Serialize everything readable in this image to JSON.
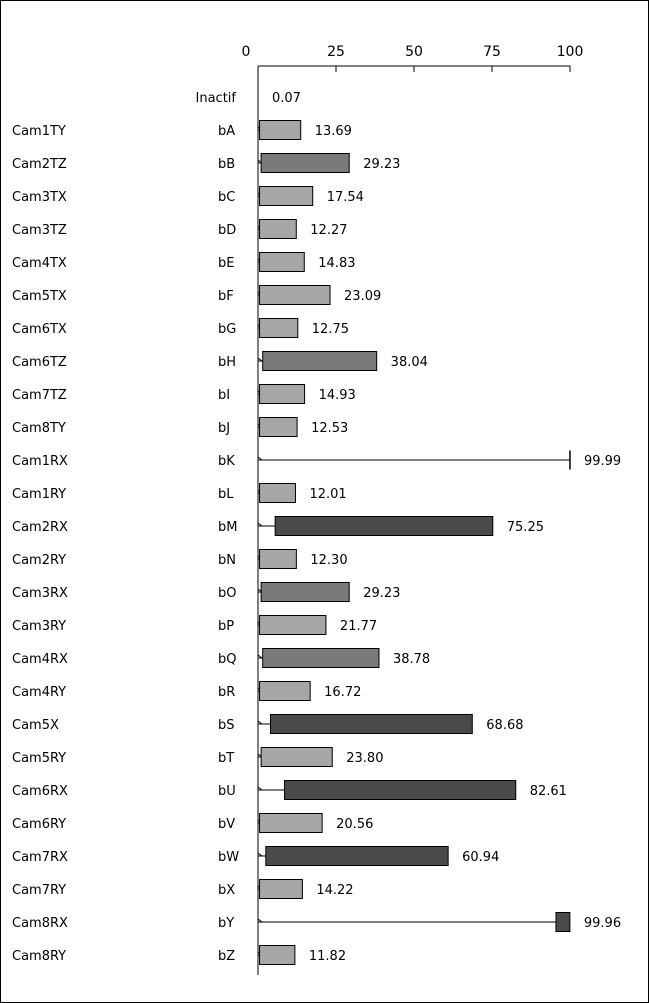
{
  "chart_data": {
    "type": "bar",
    "orientation": "horizontal",
    "x_ticks": [
      0,
      25,
      50,
      75,
      100
    ],
    "xlim": [
      0,
      100
    ],
    "grid": false,
    "header_row": {
      "code": "Inactif",
      "value": "0.07"
    },
    "rows": [
      {
        "name": "Cam1TY",
        "code": "bA",
        "start": 0.5,
        "value": 13.69,
        "label": "13.69",
        "shade": "light"
      },
      {
        "name": "Cam2TZ",
        "code": "bB",
        "start": 1.0,
        "value": 29.23,
        "label": "29.23",
        "shade": "medium"
      },
      {
        "name": "Cam3TX",
        "code": "bC",
        "start": 0.5,
        "value": 17.54,
        "label": "17.54",
        "shade": "light"
      },
      {
        "name": "Cam3TZ",
        "code": "bD",
        "start": 0.5,
        "value": 12.27,
        "label": "12.27",
        "shade": "light"
      },
      {
        "name": "Cam4TX",
        "code": "bE",
        "start": 0.5,
        "value": 14.83,
        "label": "14.83",
        "shade": "light"
      },
      {
        "name": "Cam5TX",
        "code": "bF",
        "start": 0.5,
        "value": 23.09,
        "label": "23.09",
        "shade": "light"
      },
      {
        "name": "Cam6TX",
        "code": "bG",
        "start": 0.5,
        "value": 12.75,
        "label": "12.75",
        "shade": "light"
      },
      {
        "name": "Cam6TZ",
        "code": "bH",
        "start": 1.5,
        "value": 38.04,
        "label": "38.04",
        "shade": "medium"
      },
      {
        "name": "Cam7TZ",
        "code": "bI",
        "start": 0.5,
        "value": 14.93,
        "label": "14.93",
        "shade": "light"
      },
      {
        "name": "Cam8TY",
        "code": "bJ",
        "start": 0.5,
        "value": 12.53,
        "label": "12.53",
        "shade": "light"
      },
      {
        "name": "Cam1RX",
        "code": "bK",
        "start": 99.9,
        "value": 99.99,
        "label": "99.99",
        "shade": "dark"
      },
      {
        "name": "Cam1RY",
        "code": "bL",
        "start": 0.5,
        "value": 12.01,
        "label": "12.01",
        "shade": "light"
      },
      {
        "name": "Cam2RX",
        "code": "bM",
        "start": 5.5,
        "value": 75.25,
        "label": "75.25",
        "shade": "dark"
      },
      {
        "name": "Cam2RY",
        "code": "bN",
        "start": 0.5,
        "value": 12.3,
        "label": "12.30",
        "shade": "light"
      },
      {
        "name": "Cam3RX",
        "code": "bO",
        "start": 1.0,
        "value": 29.23,
        "label": "29.23",
        "shade": "medium"
      },
      {
        "name": "Cam3RY",
        "code": "bP",
        "start": 0.5,
        "value": 21.77,
        "label": "21.77",
        "shade": "light"
      },
      {
        "name": "Cam4RX",
        "code": "bQ",
        "start": 1.5,
        "value": 38.78,
        "label": "38.78",
        "shade": "medium"
      },
      {
        "name": "Cam4RY",
        "code": "bR",
        "start": 0.5,
        "value": 16.72,
        "label": "16.72",
        "shade": "light"
      },
      {
        "name": "Cam5X",
        "code": "bS",
        "start": 4.0,
        "value": 68.68,
        "label": "68.68",
        "shade": "dark"
      },
      {
        "name": "Cam5RY",
        "code": "bT",
        "start": 1.0,
        "value": 23.8,
        "label": "23.80",
        "shade": "light"
      },
      {
        "name": "Cam6RX",
        "code": "bU",
        "start": 8.5,
        "value": 82.61,
        "label": "82.61",
        "shade": "dark"
      },
      {
        "name": "Cam6RY",
        "code": "bV",
        "start": 0.5,
        "value": 20.56,
        "label": "20.56",
        "shade": "light"
      },
      {
        "name": "Cam7RX",
        "code": "bW",
        "start": 2.5,
        "value": 60.94,
        "label": "60.94",
        "shade": "dark"
      },
      {
        "name": "Cam7RY",
        "code": "bX",
        "start": 0.5,
        "value": 14.22,
        "label": "14.22",
        "shade": "light"
      },
      {
        "name": "Cam8RX",
        "code": "bY",
        "start": 95.5,
        "value": 99.96,
        "label": "99.96",
        "shade": "dark"
      },
      {
        "name": "Cam8RY",
        "code": "bZ",
        "start": 0.5,
        "value": 11.82,
        "label": "11.82",
        "shade": "light"
      }
    ]
  },
  "colors": {
    "background": "#ffffff",
    "axis": "#000000",
    "frame": "#000000",
    "bar_light": "#a6a6a6",
    "bar_medium": "#7a7a7a",
    "bar_dark": "#4a4a4a",
    "bar_border": "#000000"
  }
}
